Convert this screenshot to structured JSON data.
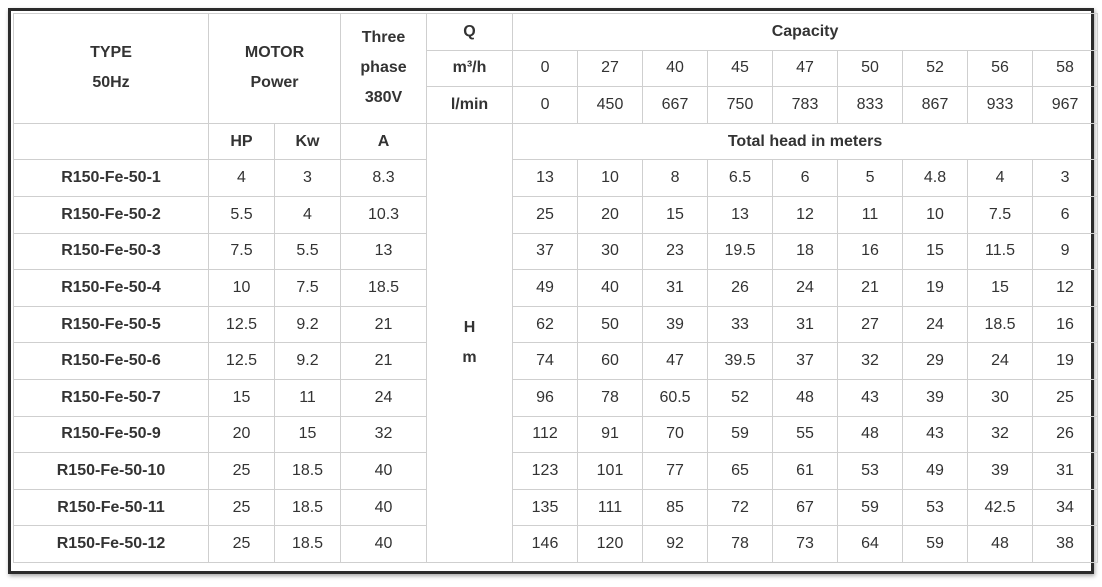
{
  "header": {
    "type_label": "TYPE",
    "hz_label": "50Hz",
    "motor_label": "MOTOR",
    "power_label": "Power",
    "three_label": "Three",
    "phase_label": "phase",
    "voltage_label": "380V",
    "q_label": "Q",
    "capacity_label": "Capacity",
    "m3h_label": "m³/h",
    "lmin_label": "l/min",
    "hp_label": "HP",
    "kw_label": "Kw",
    "a_label": "A",
    "total_head_label": "Total head in meters",
    "h_label": "H",
    "m_label": "m"
  },
  "capacity_m3h": [
    "0",
    "27",
    "40",
    "45",
    "47",
    "50",
    "52",
    "56",
    "58"
  ],
  "capacity_lmin": [
    "0",
    "450",
    "667",
    "750",
    "783",
    "833",
    "867",
    "933",
    "967"
  ],
  "rows": [
    {
      "type": "R150-Fe-50-1",
      "hp": "4",
      "kw": "3",
      "a": "8.3",
      "heads": [
        "13",
        "10",
        "8",
        "6.5",
        "6",
        "5",
        "4.8",
        "4",
        "3"
      ]
    },
    {
      "type": "R150-Fe-50-2",
      "hp": "5.5",
      "kw": "4",
      "a": "10.3",
      "heads": [
        "25",
        "20",
        "15",
        "13",
        "12",
        "11",
        "10",
        "7.5",
        "6"
      ]
    },
    {
      "type": "R150-Fe-50-3",
      "hp": "7.5",
      "kw": "5.5",
      "a": "13",
      "heads": [
        "37",
        "30",
        "23",
        "19.5",
        "18",
        "16",
        "15",
        "11.5",
        "9"
      ]
    },
    {
      "type": "R150-Fe-50-4",
      "hp": "10",
      "kw": "7.5",
      "a": "18.5",
      "heads": [
        "49",
        "40",
        "31",
        "26",
        "24",
        "21",
        "19",
        "15",
        "12"
      ]
    },
    {
      "type": "R150-Fe-50-5",
      "hp": "12.5",
      "kw": "9.2",
      "a": "21",
      "heads": [
        "62",
        "50",
        "39",
        "33",
        "31",
        "27",
        "24",
        "18.5",
        "16"
      ]
    },
    {
      "type": "R150-Fe-50-6",
      "hp": "12.5",
      "kw": "9.2",
      "a": "21",
      "heads": [
        "74",
        "60",
        "47",
        "39.5",
        "37",
        "32",
        "29",
        "24",
        "19"
      ]
    },
    {
      "type": "R150-Fe-50-7",
      "hp": "15",
      "kw": "11",
      "a": "24",
      "heads": [
        "96",
        "78",
        "60.5",
        "52",
        "48",
        "43",
        "39",
        "30",
        "25"
      ]
    },
    {
      "type": "R150-Fe-50-9",
      "hp": "20",
      "kw": "15",
      "a": "32",
      "heads": [
        "112",
        "91",
        "70",
        "59",
        "55",
        "48",
        "43",
        "32",
        "26"
      ]
    },
    {
      "type": "R150-Fe-50-10",
      "hp": "25",
      "kw": "18.5",
      "a": "40",
      "heads": [
        "123",
        "101",
        "77",
        "65",
        "61",
        "53",
        "49",
        "39",
        "31"
      ]
    },
    {
      "type": "R150-Fe-50-11",
      "hp": "25",
      "kw": "18.5",
      "a": "40",
      "heads": [
        "135",
        "111",
        "85",
        "72",
        "67",
        "59",
        "53",
        "42.5",
        "34"
      ]
    },
    {
      "type": "R150-Fe-50-12",
      "hp": "25",
      "kw": "18.5",
      "a": "40",
      "heads": [
        "146",
        "120",
        "92",
        "78",
        "73",
        "64",
        "59",
        "48",
        "38"
      ]
    }
  ]
}
